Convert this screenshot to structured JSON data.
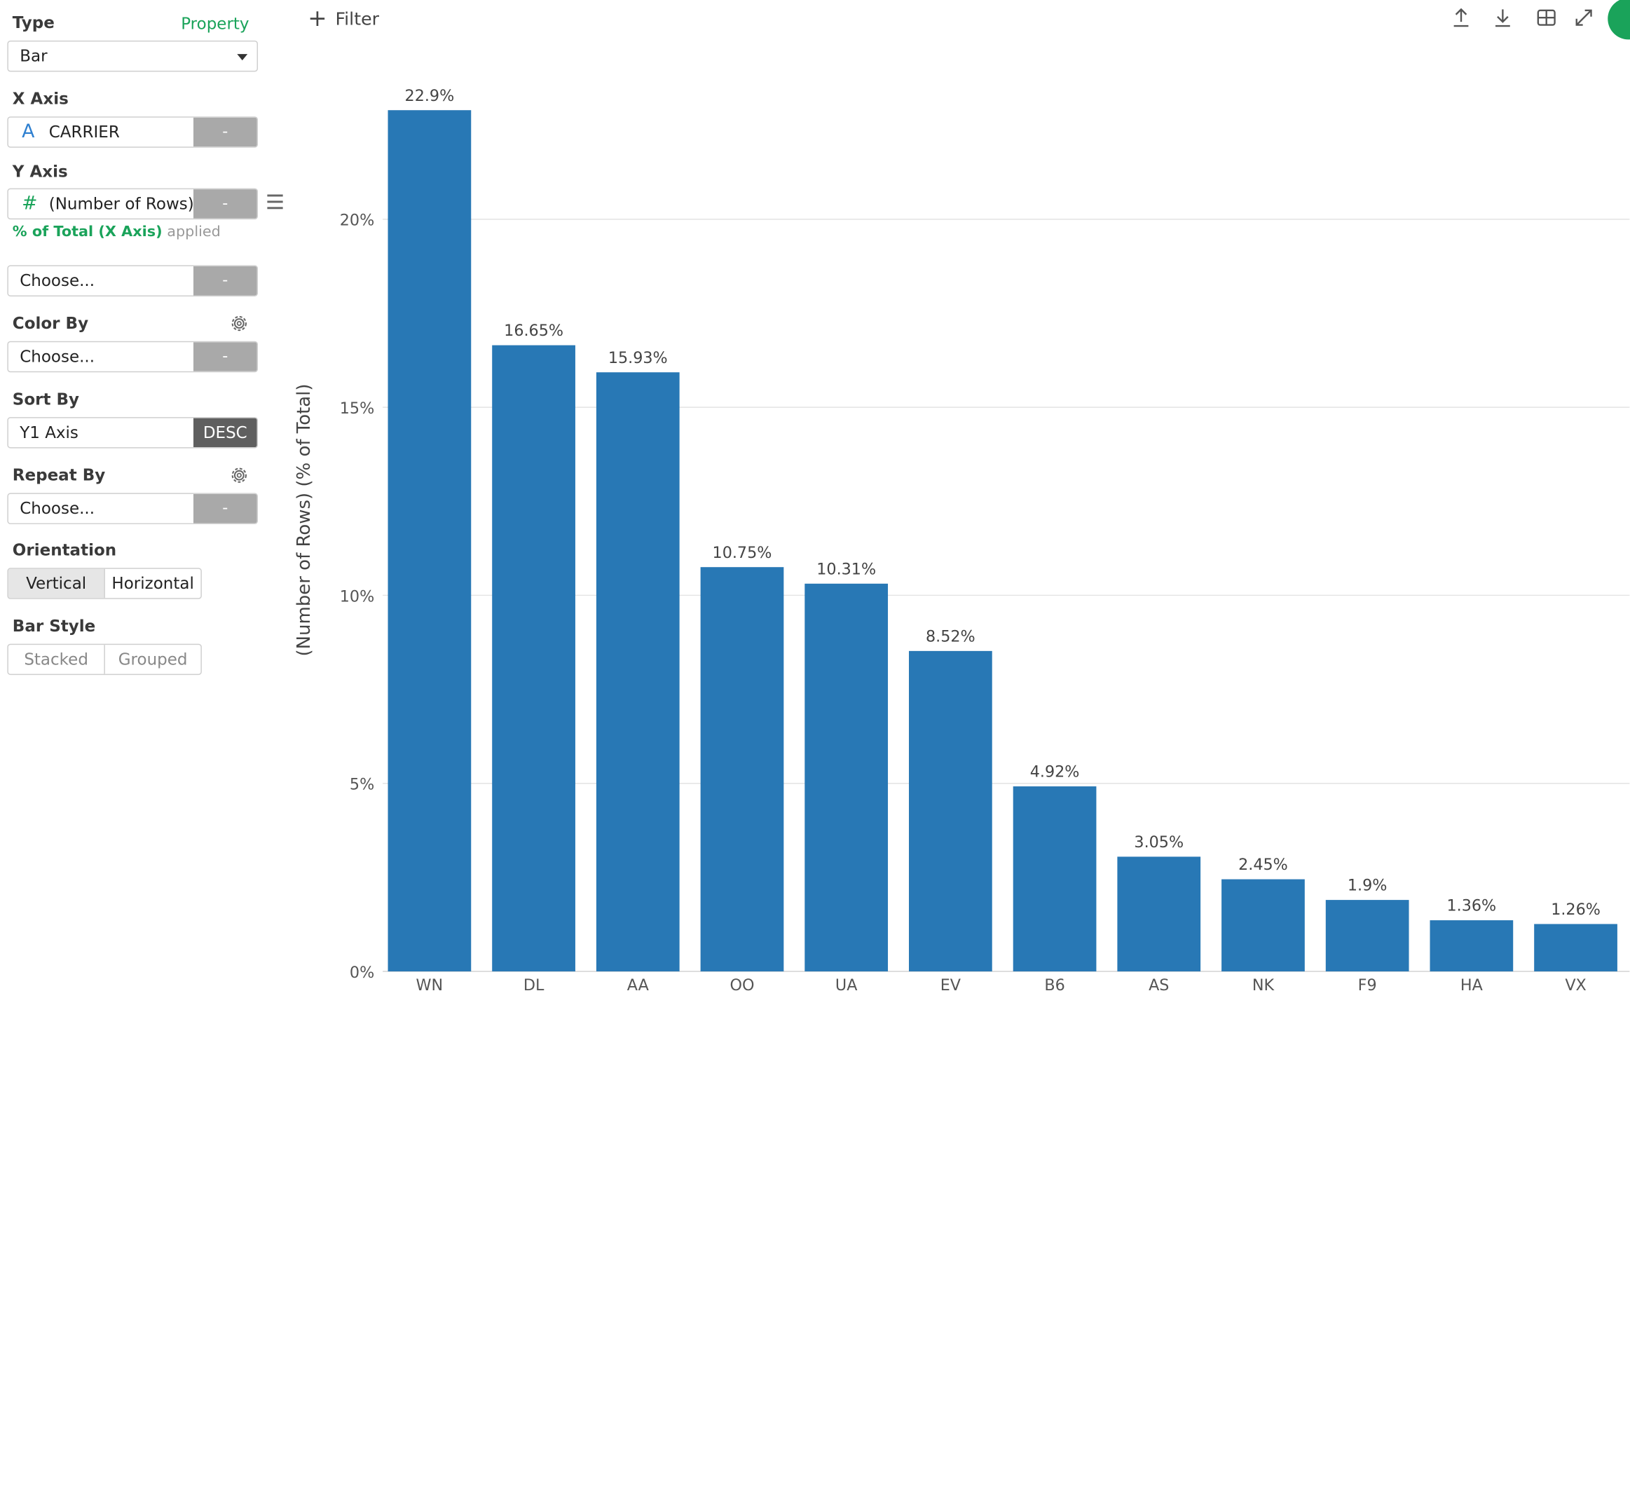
{
  "panel": {
    "type_label": "Type",
    "property_link": "Property",
    "type_value": "Bar",
    "x_axis_label": "X Axis",
    "x_axis_icon": "A",
    "x_axis_value": "CARRIER",
    "x_axis_remove": "-",
    "y_axis_label": "Y Axis",
    "y_axis_icon": "#",
    "y_axis_value": "(Number of Rows)",
    "y_axis_remove": "-",
    "y_note_green": "% of Total (X Axis)",
    "y_note_gray": "applied",
    "y2_value": "Choose...",
    "y2_remove": "-",
    "color_by_label": "Color By",
    "color_by_value": "Choose...",
    "color_by_remove": "-",
    "sort_by_label": "Sort By",
    "sort_by_value": "Y1 Axis",
    "sort_by_order": "DESC",
    "repeat_by_label": "Repeat By",
    "repeat_by_value": "Choose...",
    "repeat_by_remove": "-",
    "orientation_label": "Orientation",
    "orientation_vertical": "Vertical",
    "orientation_horizontal": "Horizontal",
    "bar_style_label": "Bar Style",
    "bar_style_stacked": "Stacked",
    "bar_style_grouped": "Grouped"
  },
  "toolbar": {
    "filter_plus": "+",
    "filter_label": "Filter"
  },
  "colors": {
    "bar": "#2878b5",
    "accent_green": "#1aa35a"
  },
  "chart_data": {
    "type": "bar",
    "ylabel": "(Number of Rows) (% of Total)",
    "categories": [
      "WN",
      "DL",
      "AA",
      "OO",
      "UA",
      "EV",
      "B6",
      "AS",
      "NK",
      "F9",
      "HA",
      "VX"
    ],
    "values": [
      22.9,
      16.65,
      15.93,
      10.75,
      10.31,
      8.52,
      4.92,
      3.05,
      2.45,
      1.9,
      1.36,
      1.26
    ],
    "value_labels": [
      "22.9%",
      "16.65%",
      "15.93%",
      "10.75%",
      "10.31%",
      "8.52%",
      "4.92%",
      "3.05%",
      "2.45%",
      "1.9%",
      "1.36%",
      "1.26%"
    ],
    "y_ticks": [
      0,
      5,
      10,
      15,
      20
    ],
    "y_tick_labels": [
      "0%",
      "5%",
      "10%",
      "15%",
      "20%"
    ],
    "ylim": [
      0,
      25
    ],
    "grid": true
  }
}
